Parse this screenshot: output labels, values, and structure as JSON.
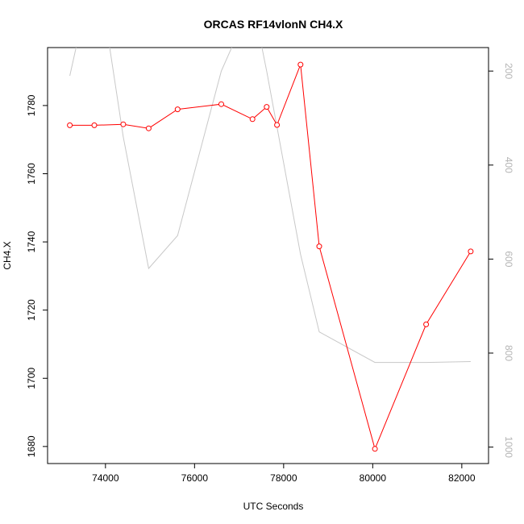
{
  "chart_data": {
    "type": "line",
    "title": "ORCAS RF14vlonN CH4.X",
    "xlabel": "UTC Seconds",
    "ylabel": "CH4.X",
    "xlim": [
      72700,
      82600
    ],
    "ylim": [
      1675,
      1797
    ],
    "x_ticks": [
      74000,
      76000,
      78000,
      80000,
      82000
    ],
    "y_ticks": [
      1680,
      1700,
      1720,
      1740,
      1760,
      1780
    ],
    "y2lim": [
      1035,
      150
    ],
    "y2_ticks": [
      200,
      400,
      600,
      800,
      1000
    ],
    "series": [
      {
        "axis": "left",
        "color": "#ff0000",
        "marker": "open-circle",
        "x": [
          73200,
          73750,
          74400,
          74970,
          75620,
          76600,
          77300,
          77620,
          77850,
          78380,
          78800,
          80050,
          81200,
          82200
        ],
        "y": [
          1774.2,
          1774.2,
          1774.5,
          1773.3,
          1778.9,
          1780.4,
          1776.0,
          1779.6,
          1774.3,
          1792.0,
          1738.7,
          1679.3,
          1715.8,
          1737.2
        ]
      },
      {
        "axis": "right",
        "color": "#c8c8c8",
        "marker": "none",
        "x": [
          73200,
          73550,
          73950,
          74400,
          74970,
          75620,
          76600,
          77300,
          77620,
          78380,
          78800,
          80050,
          81200,
          82200
        ],
        "y": [
          210,
          60,
          60,
          340,
          620,
          550,
          200,
          50,
          200,
          590,
          755,
          820,
          820,
          818
        ]
      }
    ]
  }
}
